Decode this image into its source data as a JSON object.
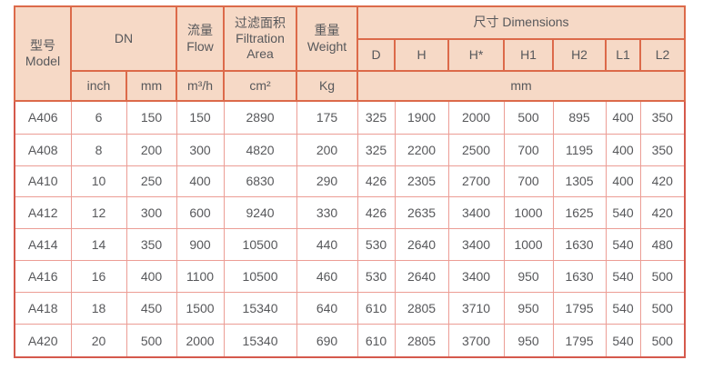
{
  "theme": {
    "header_bg": "#f6d9c6",
    "header_border": "#dc6a4a",
    "grid_border": "#ec9d95",
    "outer_border": "#d5594c",
    "text_color": "#57585b"
  },
  "table": {
    "header": {
      "model_zh": "型号",
      "model_en": "Model",
      "dn": "DN",
      "flow_zh": "流量",
      "flow_en": "Flow",
      "filtration_zh": "过滤面积",
      "filtration_en_line1": "Filtration",
      "filtration_en_line2": "Area",
      "weight_zh": "重量",
      "weight_en": "Weight",
      "dimensions": "尺寸 Dimensions",
      "dim_columns": [
        "D",
        "H",
        "H*",
        "H1",
        "H2",
        "L1",
        "L2"
      ],
      "unit_inch": "inch",
      "unit_mm": "mm",
      "unit_flow": "m³/h",
      "unit_area": "cm²",
      "unit_weight": "Kg",
      "unit_dims": "mm"
    },
    "rows": [
      {
        "model": "A406",
        "dn_inch": "6",
        "dn_mm": "150",
        "flow": "150",
        "area": "2890",
        "weight": "175",
        "dims": [
          "325",
          "1900",
          "2000",
          "500",
          "895",
          "400",
          "350"
        ]
      },
      {
        "model": "A408",
        "dn_inch": "8",
        "dn_mm": "200",
        "flow": "300",
        "area": "4820",
        "weight": "200",
        "dims": [
          "325",
          "2200",
          "2500",
          "700",
          "1195",
          "400",
          "350"
        ]
      },
      {
        "model": "A410",
        "dn_inch": "10",
        "dn_mm": "250",
        "flow": "400",
        "area": "6830",
        "weight": "290",
        "dims": [
          "426",
          "2305",
          "2700",
          "700",
          "1305",
          "400",
          "420"
        ]
      },
      {
        "model": "A412",
        "dn_inch": "12",
        "dn_mm": "300",
        "flow": "600",
        "area": "9240",
        "weight": "330",
        "dims": [
          "426",
          "2635",
          "3400",
          "1000",
          "1625",
          "540",
          "420"
        ]
      },
      {
        "model": "A414",
        "dn_inch": "14",
        "dn_mm": "350",
        "flow": "900",
        "area": "10500",
        "weight": "440",
        "dims": [
          "530",
          "2640",
          "3400",
          "1000",
          "1630",
          "540",
          "480"
        ]
      },
      {
        "model": "A416",
        "dn_inch": "16",
        "dn_mm": "400",
        "flow": "1100",
        "area": "10500",
        "weight": "460",
        "dims": [
          "530",
          "2640",
          "3400",
          "950",
          "1630",
          "540",
          "500"
        ]
      },
      {
        "model": "A418",
        "dn_inch": "18",
        "dn_mm": "450",
        "flow": "1500",
        "area": "15340",
        "weight": "640",
        "dims": [
          "610",
          "2805",
          "3710",
          "950",
          "1795",
          "540",
          "500"
        ]
      },
      {
        "model": "A420",
        "dn_inch": "20",
        "dn_mm": "500",
        "flow": "2000",
        "area": "15340",
        "weight": "690",
        "dims": [
          "610",
          "2805",
          "3700",
          "950",
          "1795",
          "540",
          "500"
        ]
      }
    ]
  }
}
